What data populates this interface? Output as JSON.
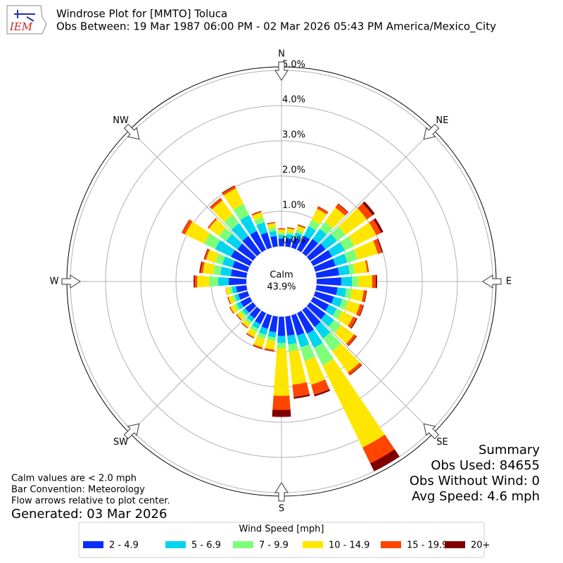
{
  "logo": "IEM",
  "chart_data": {
    "type": "windrose",
    "title": "Windrose Plot for [MMTO] Toluca",
    "subtitle": "Obs Between: 19 Mar 1987 06:00 PM - 02 Mar 2026 05:43 PM America/Mexico_City",
    "x": [
      0,
      10,
      20,
      30,
      40,
      50,
      60,
      70,
      80,
      90,
      100,
      110,
      120,
      130,
      140,
      150,
      160,
      170,
      180,
      190,
      200,
      210,
      220,
      230,
      240,
      250,
      260,
      270,
      280,
      290,
      300,
      310,
      320,
      330,
      340,
      350
    ],
    "xticks": [
      {
        "value": 0,
        "label": "N"
      },
      {
        "value": 45,
        "label": "NE"
      },
      {
        "value": 90,
        "label": "E"
      },
      {
        "value": 135,
        "label": "SE"
      },
      {
        "value": 180,
        "label": "S"
      },
      {
        "value": 225,
        "label": "SW"
      },
      {
        "value": 270,
        "label": "W"
      },
      {
        "value": 315,
        "label": "NW"
      }
    ],
    "ylim": [
      0,
      5.1
    ],
    "yticks": [
      {
        "value": 0,
        "label": "0.0%"
      },
      {
        "value": 1,
        "label": "1.0%"
      },
      {
        "value": 2,
        "label": "2.0%"
      },
      {
        "value": 3,
        "label": "3.0%"
      },
      {
        "value": 4,
        "label": "4.0%"
      },
      {
        "value": 5,
        "label": "5.0%"
      }
    ],
    "grid": true,
    "calm_label": "Calm",
    "calm_value": 43.9,
    "calm_value_label": "43.9%",
    "legend_title": "Wind Speed [mph]",
    "legend": "lower-center",
    "series": [
      {
        "name": "2 - 4.9",
        "color": "#0a2eff",
        "values": [
          0.22,
          0.24,
          0.3,
          0.45,
          0.5,
          0.55,
          0.6,
          0.6,
          0.65,
          0.7,
          0.6,
          0.55,
          0.5,
          0.55,
          0.6,
          0.65,
          0.6,
          0.55,
          0.55,
          0.45,
          0.4,
          0.35,
          0.3,
          0.28,
          0.3,
          0.28,
          0.3,
          0.5,
          0.45,
          0.45,
          0.6,
          0.55,
          0.6,
          0.6,
          0.45,
          0.3
        ]
      },
      {
        "name": "5 - 6.9",
        "color": "#00d5f0",
        "values": [
          0.1,
          0.12,
          0.15,
          0.3,
          0.35,
          0.4,
          0.4,
          0.35,
          0.3,
          0.3,
          0.25,
          0.25,
          0.25,
          0.3,
          0.4,
          0.45,
          0.35,
          0.25,
          0.2,
          0.15,
          0.18,
          0.15,
          0.12,
          0.1,
          0.12,
          0.1,
          0.12,
          0.3,
          0.3,
          0.3,
          0.5,
          0.4,
          0.45,
          0.5,
          0.3,
          0.15
        ]
      },
      {
        "name": "7 - 9.9",
        "color": "#7dff7a",
        "values": [
          0.06,
          0.06,
          0.08,
          0.2,
          0.25,
          0.3,
          0.3,
          0.3,
          0.15,
          0.18,
          0.15,
          0.17,
          0.17,
          0.25,
          0.45,
          0.55,
          0.4,
          0.2,
          0.15,
          0.1,
          0.12,
          0.1,
          0.08,
          0.07,
          0.08,
          0.07,
          0.07,
          0.25,
          0.2,
          0.2,
          0.35,
          0.25,
          0.3,
          0.35,
          0.15,
          0.1
        ]
      },
      {
        "name": "10 - 14.9",
        "color": "#ffe600",
        "values": [
          0.1,
          0.1,
          0.12,
          0.35,
          0.5,
          0.75,
          0.7,
          0.6,
          0.35,
          0.4,
          0.35,
          0.35,
          0.35,
          0.45,
          0.75,
          2.6,
          0.7,
          0.95,
          1.35,
          0.25,
          0.25,
          0.16,
          0.12,
          0.12,
          0.12,
          0.12,
          0.1,
          0.35,
          0.3,
          0.28,
          0.6,
          0.35,
          0.5,
          0.5,
          0.15,
          0.12
        ]
      },
      {
        "name": "15 - 19.9",
        "color": "#ff4500",
        "values": [
          0.02,
          0.02,
          0.03,
          0.07,
          0.12,
          0.2,
          0.15,
          0.12,
          0.05,
          0.1,
          0.07,
          0.1,
          0.1,
          0.08,
          0.08,
          0.5,
          0.3,
          0.35,
          0.4,
          0.04,
          0.04,
          0.03,
          0.02,
          0.02,
          0.02,
          0.02,
          0.01,
          0.07,
          0.07,
          0.05,
          0.1,
          0.05,
          0.08,
          0.07,
          0.03,
          0.02
        ]
      },
      {
        "name": "20+",
        "color": "#800000",
        "values": [
          0.01,
          0.01,
          0.01,
          0.01,
          0.02,
          0.08,
          0.07,
          0.03,
          0.0,
          0.04,
          0.02,
          0.02,
          0.03,
          0.02,
          0.02,
          0.25,
          0.05,
          0.05,
          0.2,
          0.01,
          0.01,
          0.01,
          0.01,
          0.01,
          0.01,
          0.01,
          0.0,
          0.03,
          0.03,
          0.02,
          0.01,
          0.0,
          0.01,
          0.02,
          0.01,
          0.01
        ]
      }
    ]
  },
  "notes": [
    "Calm values are < 2.0 mph",
    "Bar Convention: Meteorology",
    "Flow arrows relative to plot center."
  ],
  "generated": "Generated: 03 Mar 2026",
  "summary": {
    "title": "Summary",
    "lines": [
      "Obs Used: 84655",
      "Obs Without Wind: 0",
      "Avg Speed: 4.6 mph"
    ]
  }
}
